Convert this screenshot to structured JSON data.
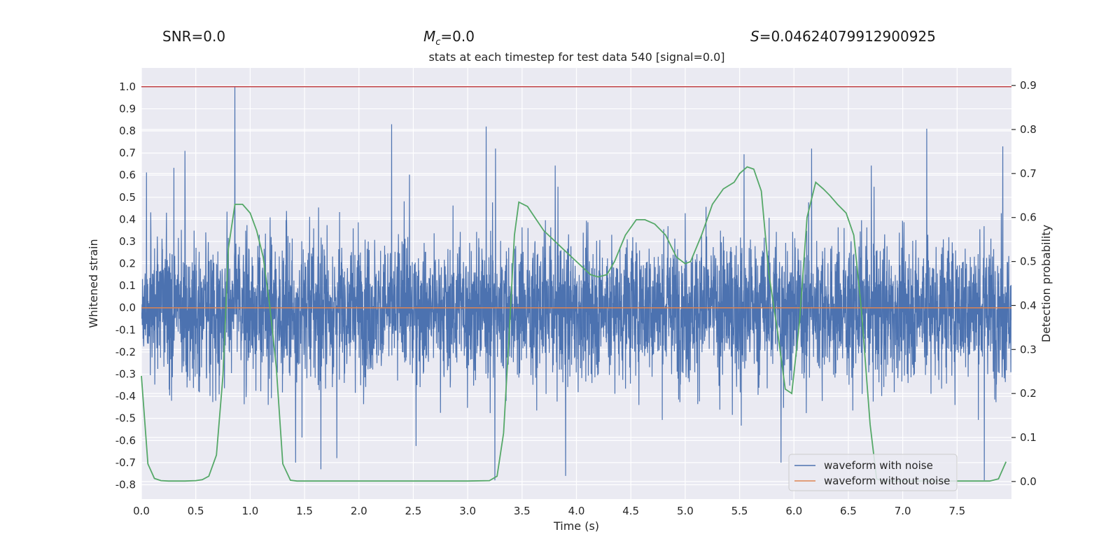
{
  "header": {
    "snr": "SNR=0.0",
    "mc_symbol": "M",
    "mc_sub": "c",
    "mc_value": "=0.0",
    "s_symbol": "S",
    "s_value": "=0.04624079912900925"
  },
  "chart_data": {
    "type": "line",
    "title": "stats at each timestep for test data 540 [signal=0.0]",
    "xlabel": "Time (s)",
    "ylabel_left": "Whitened strain",
    "ylabel_right": "Detection probability",
    "xlim": [
      0.0,
      8.0
    ],
    "ylim_left": [
      -0.865,
      1.085
    ],
    "ylim_right": [
      -0.04,
      0.94
    ],
    "x_ticks": [
      "0.0",
      "0.5",
      "1.0",
      "1.5",
      "2.0",
      "2.5",
      "3.0",
      "3.5",
      "4.0",
      "4.5",
      "5.0",
      "5.5",
      "6.0",
      "6.5",
      "7.0",
      "7.5"
    ],
    "left_ticks": [
      "-0.8",
      "-0.7",
      "-0.6",
      "-0.5",
      "-0.4",
      "-0.3",
      "-0.2",
      "-0.1",
      "0.0",
      "0.1",
      "0.2",
      "0.3",
      "0.4",
      "0.5",
      "0.6",
      "0.7",
      "0.8",
      "0.9",
      "1.0"
    ],
    "right_ticks": [
      "0.0",
      "0.1",
      "0.2",
      "0.3",
      "0.4",
      "0.5",
      "0.6",
      "0.7",
      "0.8",
      "0.9"
    ],
    "threshold_line": 1.0,
    "series": [
      {
        "name": "waveform with noise",
        "color": "#4c72b0",
        "axis": "left",
        "description": "whitened noise, approx. 4096 samples, envelope ±0.35 with spikes",
        "peaks": [
          {
            "x": 0.86,
            "y": 1.0
          },
          {
            "x": 2.3,
            "y": 0.83
          },
          {
            "x": 3.17,
            "y": 0.82
          },
          {
            "x": 7.22,
            "y": 0.81
          },
          {
            "x": 0.4,
            "y": 0.71
          },
          {
            "x": 7.92,
            "y": 0.73
          }
        ],
        "troughs": [
          {
            "x": 3.25,
            "y": -0.78
          },
          {
            "x": 7.75,
            "y": -0.78
          },
          {
            "x": 3.9,
            "y": -0.76
          },
          {
            "x": 1.65,
            "y": -0.73
          },
          {
            "x": 5.88,
            "y": -0.7
          }
        ]
      },
      {
        "name": "waveform without noise",
        "color": "#dd8452",
        "axis": "left",
        "x": [
          0.0,
          8.0
        ],
        "y": [
          0.0,
          0.0
        ]
      },
      {
        "name": "Detection probability",
        "color": "#55a868",
        "axis": "right",
        "x": [
          0.0,
          0.06,
          0.12,
          0.18,
          0.25,
          0.4,
          0.5,
          0.56,
          0.62,
          0.69,
          0.75,
          0.8,
          0.86,
          0.93,
          1.0,
          1.06,
          1.12,
          1.18,
          1.24,
          1.3,
          1.37,
          1.43,
          1.5,
          1.8,
          2.2,
          2.6,
          3.0,
          3.2,
          3.27,
          3.33,
          3.38,
          3.43,
          3.47,
          3.55,
          3.7,
          3.87,
          4.0,
          4.13,
          4.2,
          4.28,
          4.35,
          4.45,
          4.55,
          4.63,
          4.72,
          4.82,
          4.92,
          5.0,
          5.05,
          5.15,
          5.25,
          5.35,
          5.45,
          5.5,
          5.57,
          5.63,
          5.7,
          5.77,
          5.85,
          5.92,
          5.98,
          6.05,
          6.12,
          6.2,
          6.27,
          6.33,
          6.4,
          6.48,
          6.55,
          6.62,
          6.7,
          6.76,
          6.82,
          6.9,
          7.0,
          7.3,
          7.5,
          7.7,
          7.8,
          7.88,
          7.95
        ],
        "y": [
          0.24,
          0.04,
          0.007,
          0.002,
          0.001,
          0.001,
          0.002,
          0.004,
          0.012,
          0.06,
          0.24,
          0.53,
          0.63,
          0.63,
          0.61,
          0.57,
          0.51,
          0.4,
          0.26,
          0.04,
          0.003,
          0.001,
          0.001,
          0.001,
          0.001,
          0.001,
          0.001,
          0.002,
          0.012,
          0.11,
          0.33,
          0.56,
          0.635,
          0.625,
          0.57,
          0.53,
          0.5,
          0.47,
          0.465,
          0.47,
          0.5,
          0.56,
          0.595,
          0.595,
          0.585,
          0.56,
          0.51,
          0.495,
          0.5,
          0.56,
          0.63,
          0.665,
          0.68,
          0.7,
          0.715,
          0.71,
          0.66,
          0.47,
          0.34,
          0.21,
          0.2,
          0.36,
          0.6,
          0.68,
          0.665,
          0.65,
          0.63,
          0.61,
          0.56,
          0.39,
          0.13,
          0.006,
          0.001,
          0.001,
          0.001,
          0.001,
          0.001,
          0.001,
          0.001,
          0.006,
          0.045
        ]
      }
    ],
    "legend": {
      "position": "lower-right",
      "entries": [
        {
          "label": "waveform with noise",
          "color": "#4c72b0"
        },
        {
          "label": "waveform without noise",
          "color": "#dd8452"
        }
      ]
    },
    "colors": {
      "background": "#eaeaf2",
      "grid": "#ffffff",
      "threshold": "#c44e52"
    }
  }
}
